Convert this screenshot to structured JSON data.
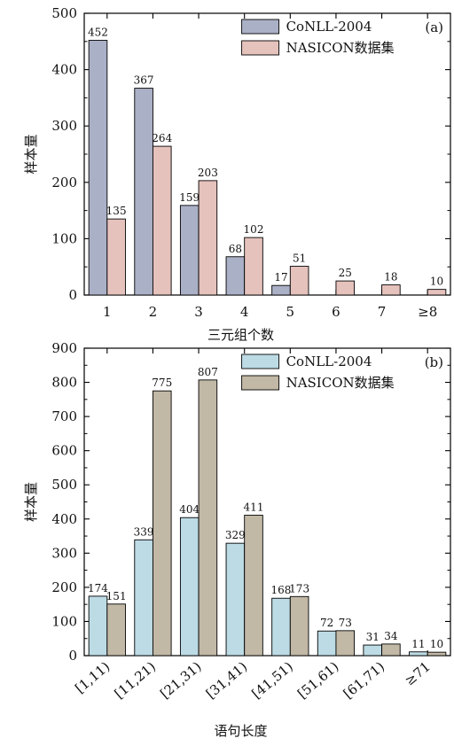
{
  "chart_data": [
    {
      "type": "bar",
      "panel_tag": "(a)",
      "categories": [
        "1",
        "2",
        "3",
        "4",
        "5",
        "6",
        "7",
        "≥8"
      ],
      "series": [
        {
          "name": "CoNLL-2004",
          "values": [
            452,
            367,
            159,
            68,
            17,
            null,
            null,
            null
          ],
          "color": "#aab0c6"
        },
        {
          "name": "NASICON数据集",
          "values": [
            135,
            264,
            203,
            102,
            51,
            25,
            18,
            10
          ],
          "color": "#e6c2bd"
        }
      ],
      "xlabel": "三元组个数",
      "ylabel": "样本量",
      "ylim": [
        0,
        500
      ],
      "yticks": [
        0,
        100,
        200,
        300,
        400,
        500
      ],
      "legend_position": "top-right",
      "grid": false
    },
    {
      "type": "bar",
      "panel_tag": "(b)",
      "categories": [
        "[1,11)",
        "[11,21)",
        "[21,31)",
        "[31,41)",
        "[41,51)",
        "[51,61)",
        "[61,71)",
        "≥71"
      ],
      "series": [
        {
          "name": "CoNLL-2004",
          "values": [
            174,
            339,
            404,
            329,
            168,
            72,
            31,
            11
          ],
          "color": "#bcdbe4"
        },
        {
          "name": "NASICON数据集",
          "values": [
            151,
            775,
            807,
            411,
            173,
            73,
            34,
            10
          ],
          "color": "#c2b8a6"
        }
      ],
      "xlabel": "语句长度",
      "ylabel": "样本量",
      "ylim": [
        0,
        900
      ],
      "yticks": [
        0,
        100,
        200,
        300,
        400,
        500,
        600,
        700,
        800,
        900
      ],
      "legend_position": "top-right",
      "grid": false
    }
  ]
}
